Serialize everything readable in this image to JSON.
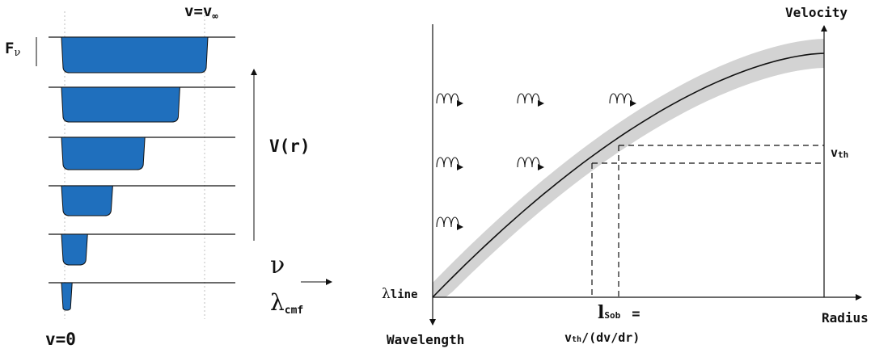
{
  "colors": {
    "absorption_fill": "#1f6fbd",
    "ink": "#111111",
    "shade_band": "#d3d3d3",
    "dotted_guide": "#bfbfbf"
  },
  "left_panel": {
    "top_label": "v=v",
    "top_label_sub": "∞",
    "flux_label": "F",
    "flux_label_sub": "ν",
    "velocity_label": "V(r)",
    "nu_label": "ν",
    "lambda_label": "λ",
    "lambda_label_sub": "cmf",
    "bottom_label": "v=0",
    "profiles": [
      {
        "relative_width": 1.0
      },
      {
        "relative_width": 0.8
      },
      {
        "relative_width": 0.55
      },
      {
        "relative_width": 0.32
      },
      {
        "relative_width": 0.14
      },
      {
        "relative_width": 0.03
      }
    ]
  },
  "right_panel": {
    "y_axis_label": "Velocity",
    "x_axis_label": "Radius",
    "down_axis_label": "Wavelength",
    "origin_label": "λ",
    "origin_label_sub": "line",
    "vth_label": "v",
    "vth_label_sub": "th",
    "sobolev_label": "l",
    "sobolev_label_sub": "Sob",
    "sobolev_eq": "=",
    "sobolev_formula_v": "v",
    "sobolev_formula_sub": "th",
    "sobolev_formula_rest": "/(dv/dr)",
    "photon_rows": [
      3,
      2,
      1
    ]
  }
}
